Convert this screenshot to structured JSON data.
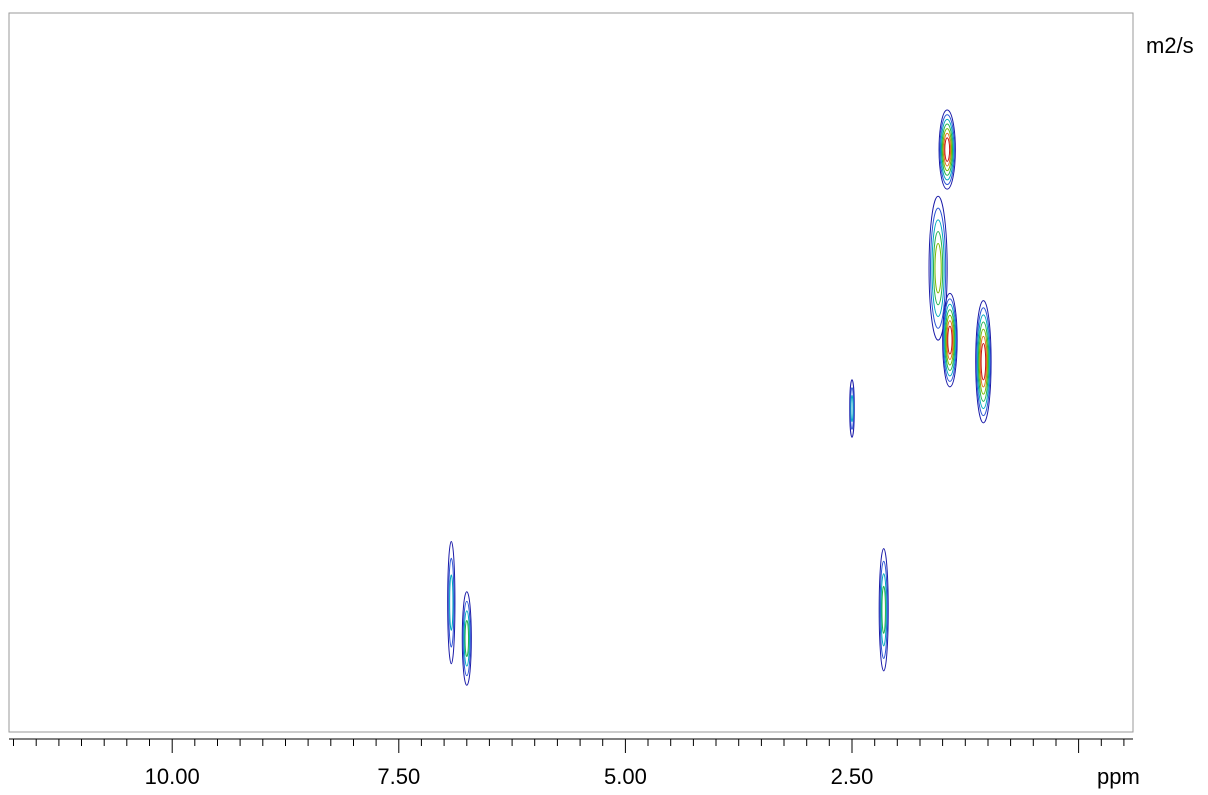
{
  "chart_data": {
    "type": "contour",
    "title": "",
    "xlabel": "ppm",
    "ylabel": "m2/s",
    "x_axis_reversed": true,
    "xlim": [
      11.8,
      -0.6
    ],
    "x_ticks": [
      {
        "value": 10.0,
        "label": "10.00"
      },
      {
        "value": 7.5,
        "label": "7.50"
      },
      {
        "value": 5.0,
        "label": "5.00"
      },
      {
        "value": 2.5,
        "label": "2.50"
      }
    ],
    "minor_tick_step": 0.25,
    "y_ticks": [],
    "grid": false,
    "legend": "none",
    "contour_palette": [
      "#1a1aa8",
      "#2b55d6",
      "#00a8c0",
      "#22b14c",
      "#7ab800",
      "#e07020",
      "#c81414"
    ],
    "peaks": [
      {
        "x": 6.92,
        "level": 0.82,
        "sx": 0.04,
        "sy": 0.085,
        "intensity": 3
      },
      {
        "x": 6.75,
        "level": 0.87,
        "sx": 0.05,
        "sy": 0.065,
        "intensity": 4
      },
      {
        "x": 2.5,
        "level": 0.55,
        "sx": 0.025,
        "sy": 0.04,
        "intensity": 3
      },
      {
        "x": 2.15,
        "level": 0.83,
        "sx": 0.05,
        "sy": 0.085,
        "intensity": 4
      },
      {
        "x": 1.45,
        "level": 0.19,
        "sx": 0.09,
        "sy": 0.055,
        "intensity": 7
      },
      {
        "x": 1.55,
        "level": 0.355,
        "sx": 0.1,
        "sy": 0.1,
        "intensity": 5
      },
      {
        "x": 1.42,
        "level": 0.455,
        "sx": 0.08,
        "sy": 0.065,
        "intensity": 7
      },
      {
        "x": 1.05,
        "level": 0.485,
        "sx": 0.085,
        "sy": 0.085,
        "intensity": 7
      }
    ]
  }
}
